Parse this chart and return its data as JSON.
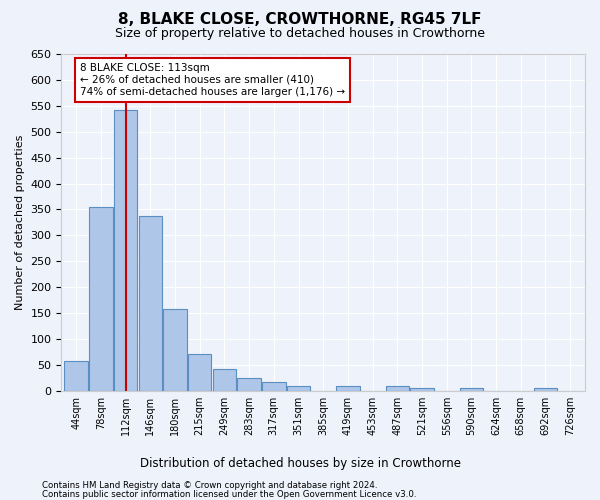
{
  "title": "8, BLAKE CLOSE, CROWTHORNE, RG45 7LF",
  "subtitle": "Size of property relative to detached houses in Crowthorne",
  "xlabel_bottom": "Distribution of detached houses by size in Crowthorne",
  "ylabel": "Number of detached properties",
  "footnote1": "Contains HM Land Registry data © Crown copyright and database right 2024.",
  "footnote2": "Contains public sector information licensed under the Open Government Licence v3.0.",
  "bin_labels": [
    "44sqm",
    "78sqm",
    "112sqm",
    "146sqm",
    "180sqm",
    "215sqm",
    "249sqm",
    "283sqm",
    "317sqm",
    "351sqm",
    "385sqm",
    "419sqm",
    "453sqm",
    "487sqm",
    "521sqm",
    "556sqm",
    "590sqm",
    "624sqm",
    "658sqm",
    "692sqm",
    "726sqm"
  ],
  "bar_values": [
    58,
    355,
    542,
    338,
    157,
    70,
    42,
    25,
    16,
    10,
    0,
    10,
    0,
    10,
    5,
    0,
    5,
    0,
    0,
    5,
    0
  ],
  "bar_color": "#aec6e8",
  "bar_edge_color": "#5a8fc2",
  "property_bin_index": 2,
  "red_line_color": "#cc0000",
  "annotation_text": "8 BLAKE CLOSE: 113sqm\n← 26% of detached houses are smaller (410)\n74% of semi-detached houses are larger (1,176) →",
  "annotation_box_color": "#cc0000",
  "ylim": [
    0,
    650
  ],
  "yticks": [
    0,
    50,
    100,
    150,
    200,
    250,
    300,
    350,
    400,
    450,
    500,
    550,
    600,
    650
  ],
  "background_color": "#eef2fb",
  "grid_color": "#ffffff"
}
